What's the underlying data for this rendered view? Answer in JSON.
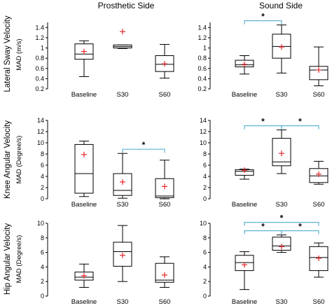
{
  "colors": {
    "box": "#000000",
    "mean_marker": "#e8262a",
    "bracket": "#5fb3d3"
  },
  "column_titles": [
    "Prosthetic Side",
    "Sound Side"
  ],
  "row_labels": [
    "Lateral Sway Velocity",
    "Knee Angular Velocity",
    "Hip Angular Velocity"
  ],
  "axis_labels": [
    "MAD (m/s)",
    "MAD (Degree/s)",
    "MAD (Degree/s)"
  ],
  "significance_symbol": "*",
  "chart_data": [
    {
      "type": "box",
      "panel": "Lateral Sway Velocity - Prosthetic Side",
      "ylabel": "MAD (m/s)",
      "ylim": [
        0.2,
        1.5
      ],
      "yticks": [
        "0.2",
        "0.4",
        "0.6",
        "0.8",
        "1",
        "1.2",
        "1.4"
      ],
      "categories": [
        "Baseline",
        "S30",
        "S60"
      ],
      "boxes": [
        {
          "whisker_low": 0.44,
          "q1": 0.78,
          "median": 0.88,
          "q3": 1.08,
          "whisker_high": 1.14,
          "mean": 0.93
        },
        {
          "whisker_low": 0.99,
          "q1": 1.0,
          "median": 1.03,
          "q3": 1.06,
          "whisker_high": 1.06,
          "mean": 1.32
        },
        {
          "whisker_low": 0.41,
          "q1": 0.54,
          "median": 0.68,
          "q3": 0.85,
          "whisker_high": 1.07,
          "mean": 0.69
        }
      ],
      "significance": []
    },
    {
      "type": "box",
      "panel": "Lateral Sway Velocity - Sound Side",
      "ylabel": "",
      "ylim": [
        0.2,
        1.5
      ],
      "yticks": [
        "0.2",
        "0.4",
        "0.6",
        "0.8",
        "1",
        "1.2",
        "1.4"
      ],
      "categories": [
        "Baseline",
        "S30",
        "S60"
      ],
      "boxes": [
        {
          "whisker_low": 0.49,
          "q1": 0.63,
          "median": 0.67,
          "q3": 0.76,
          "whisker_high": 0.85,
          "mean": 0.68
        },
        {
          "whisker_low": 0.51,
          "q1": 0.8,
          "median": 1.03,
          "q3": 1.27,
          "whisker_high": 1.45,
          "mean": 1.02
        },
        {
          "whisker_low": 0.26,
          "q1": 0.38,
          "median": 0.57,
          "q3": 0.64,
          "whisker_high": 1.02,
          "mean": 0.57
        }
      ],
      "significance": [
        {
          "from": 0,
          "to": 1,
          "level": 1
        }
      ]
    },
    {
      "type": "box",
      "panel": "Knee Angular Velocity - Prosthetic Side",
      "ylabel": "MAD (Degree/s)",
      "ylim": [
        0,
        14
      ],
      "yticks": [
        "0",
        "2",
        "4",
        "6",
        "8",
        "10",
        "12",
        "14"
      ],
      "categories": [
        "Baseline",
        "S30",
        "S60"
      ],
      "boxes": [
        {
          "whisker_low": 0.4,
          "q1": 1.0,
          "median": 4.5,
          "q3": 9.7,
          "whisker_high": 10.3,
          "mean": 7.9
        },
        {
          "whisker_low": 0.1,
          "q1": 0.6,
          "median": 1.5,
          "q3": 4.5,
          "whisker_high": 8.1,
          "mean": 3.0
        },
        {
          "whisker_low": 0.0,
          "q1": 0.2,
          "median": 0.5,
          "q3": 3.6,
          "whisker_high": 6.9,
          "mean": 2.2
        }
      ],
      "significance": [
        {
          "from": 1,
          "to": 2,
          "level": 1
        }
      ]
    },
    {
      "type": "box",
      "panel": "Knee Angular Velocity - Sound Side",
      "ylabel": "",
      "ylim": [
        0,
        14
      ],
      "yticks": [
        "0",
        "2",
        "4",
        "6",
        "8",
        "10",
        "12",
        "14"
      ],
      "categories": [
        "Baseline",
        "S30",
        "S60"
      ],
      "boxes": [
        {
          "whisker_low": 3.5,
          "q1": 4.2,
          "median": 4.9,
          "q3": 5.2,
          "whisker_high": 5.3,
          "mean": 5.1
        },
        {
          "whisker_low": 4.5,
          "q1": 5.9,
          "median": 6.6,
          "q3": 10.8,
          "whisker_high": 12.3,
          "mean": 8.1
        },
        {
          "whisker_low": 2.6,
          "q1": 2.9,
          "median": 4.1,
          "q3": 5.4,
          "whisker_high": 6.7,
          "mean": 4.4
        }
      ],
      "significance": [
        {
          "from": 0,
          "to": 1,
          "level": 1
        },
        {
          "from": 1,
          "to": 2,
          "level": 1
        }
      ]
    },
    {
      "type": "box",
      "panel": "Hip Angular Velocity - Prosthetic Side",
      "ylabel": "MAD (Degree/s)",
      "ylim": [
        0,
        10
      ],
      "yticks": [
        "0",
        "2",
        "4",
        "6",
        "8",
        "10"
      ],
      "categories": [
        "Baseline",
        "S30",
        "S60"
      ],
      "boxes": [
        {
          "whisker_low": 1.2,
          "q1": 2.2,
          "median": 2.6,
          "q3": 3.3,
          "whisker_high": 4.4,
          "mean": 2.8
        },
        {
          "whisker_low": 2.0,
          "q1": 4.1,
          "median": 6.1,
          "q3": 7.4,
          "whisker_high": 9.7,
          "mean": 5.6
        },
        {
          "whisker_low": 1.2,
          "q1": 1.9,
          "median": 2.2,
          "q3": 4.5,
          "whisker_high": 5.4,
          "mean": 2.9
        }
      ],
      "significance": []
    },
    {
      "type": "box",
      "panel": "Hip Angular Velocity - Sound Side",
      "ylabel": "",
      "ylim": [
        0,
        10
      ],
      "yticks": [
        "0",
        "2",
        "4",
        "6",
        "8",
        "10"
      ],
      "categories": [
        "Baseline",
        "S30",
        "S60"
      ],
      "boxes": [
        {
          "whisker_low": 0.9,
          "q1": 3.5,
          "median": 4.6,
          "q3": 5.6,
          "whisker_high": 6.1,
          "mean": 4.3
        },
        {
          "whisker_low": 6.0,
          "q1": 6.3,
          "median": 6.9,
          "q3": 8.1,
          "whisker_high": 8.4,
          "mean": 6.8
        },
        {
          "whisker_low": 2.6,
          "q1": 3.5,
          "median": 5.3,
          "q3": 6.8,
          "whisker_high": 7.3,
          "mean": 5.2
        }
      ],
      "significance": [
        {
          "from": 0,
          "to": 1,
          "level": 1
        },
        {
          "from": 1,
          "to": 2,
          "level": 1
        },
        {
          "from": 0,
          "to": 2,
          "level": 2
        }
      ]
    }
  ]
}
